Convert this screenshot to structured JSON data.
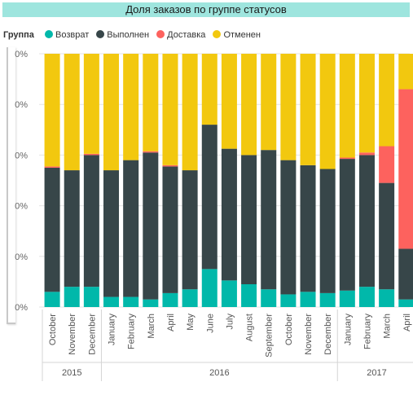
{
  "title": "Доля заказов по группе статусов",
  "legend": {
    "title": "Группа",
    "items": [
      {
        "label": "Возврат",
        "color": "#01b8aa"
      },
      {
        "label": "Выполнен",
        "color": "#374649"
      },
      {
        "label": "Доставка",
        "color": "#fd625e"
      },
      {
        "label": "Отменен",
        "color": "#f2c80f"
      }
    ]
  },
  "chart_data": {
    "type": "bar",
    "stacked": "percent",
    "ylim": [
      0,
      100
    ],
    "y_tick_labels": [
      "0%",
      "0%",
      "0%",
      "0%",
      "0%",
      "0%"
    ],
    "categories": [
      "October",
      "November",
      "December",
      "January",
      "February",
      "March",
      "April",
      "May",
      "June",
      "July",
      "August",
      "September",
      "October",
      "November",
      "December",
      "January",
      "February",
      "March",
      "April"
    ],
    "year_groups": [
      {
        "label": "2015",
        "count": 3
      },
      {
        "label": "2016",
        "count": 12
      },
      {
        "label": "2017",
        "count": 4
      }
    ],
    "series": [
      {
        "name": "Возврат",
        "color": "#01b8aa",
        "values": [
          6,
          8,
          8,
          4,
          4,
          3,
          5.5,
          7,
          15,
          10.5,
          9,
          7,
          5,
          6,
          5.5,
          6.5,
          8,
          7,
          3
        ]
      },
      {
        "name": "Выполнен",
        "color": "#374649",
        "values": [
          49,
          46,
          52,
          50,
          54,
          58,
          50,
          47,
          57,
          52,
          51,
          55,
          53,
          50,
          49,
          52,
          52,
          42,
          20
        ]
      },
      {
        "name": "Доставка",
        "color": "#fd625e",
        "values": [
          0.5,
          0,
          0.5,
          0,
          0,
          0.5,
          0.5,
          0,
          0,
          0,
          0,
          0,
          0,
          0,
          0,
          0.5,
          1,
          14.5,
          63
        ]
      },
      {
        "name": "Отменен",
        "color": "#f2c80f",
        "values": [
          44.5,
          46,
          39.5,
          46,
          42,
          38.5,
          44,
          46,
          28,
          37.5,
          40,
          38,
          42,
          44,
          45.5,
          41,
          39,
          36.5,
          14
        ]
      }
    ]
  }
}
